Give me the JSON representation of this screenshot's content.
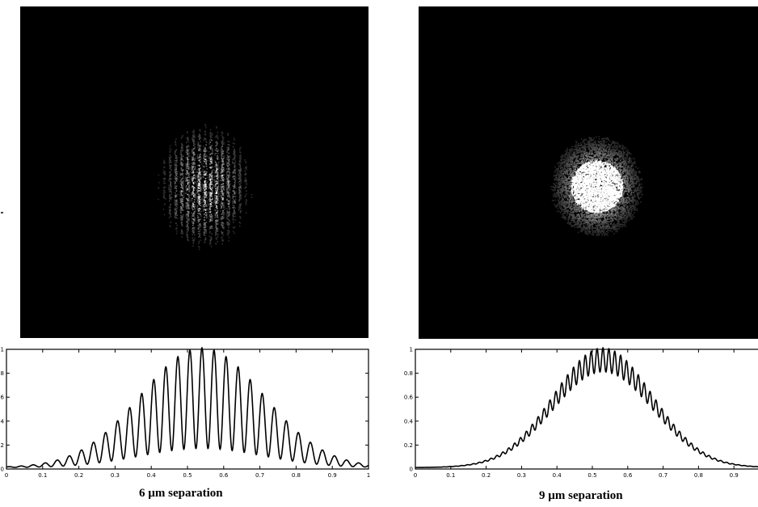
{
  "figure": {
    "captions": [
      {
        "number": "6",
        "unit": "µm",
        "rest": "separation"
      },
      {
        "number": "9",
        "unit": "µm",
        "rest": "separation"
      }
    ]
  },
  "chart_data": [
    {
      "type": "line",
      "xlim": [
        0,
        1
      ],
      "ylim": [
        0,
        1
      ],
      "xticks": [
        "0",
        "0.1",
        "0.2",
        "0.3",
        "0.4",
        "0.5",
        "0.6",
        "0.7",
        "0.8",
        "0.9",
        "1"
      ],
      "yticks": [
        "0",
        "0.2",
        "0.4",
        "0.6",
        "0.8",
        "1"
      ],
      "envelope": {
        "center": 0.54,
        "sigma": 0.17
      },
      "fringes": 30,
      "fringe_contrast": 0.42,
      "peak_value": 1.0
    },
    {
      "type": "line",
      "xlim": [
        0,
        1
      ],
      "ylim": [
        0,
        1
      ],
      "xticks": [
        "0",
        "0.1",
        "0.2",
        "0.3",
        "0.4",
        "0.5",
        "0.6",
        "0.7",
        "0.8",
        "0.9"
      ],
      "yticks": [
        "0",
        "0.2",
        "0.4",
        "0.6",
        "0.8",
        "1"
      ],
      "envelope": {
        "center": 0.53,
        "sigma": 0.14
      },
      "fringes": 60,
      "fringe_contrast": 0.1,
      "peak_value": 1.0
    }
  ]
}
